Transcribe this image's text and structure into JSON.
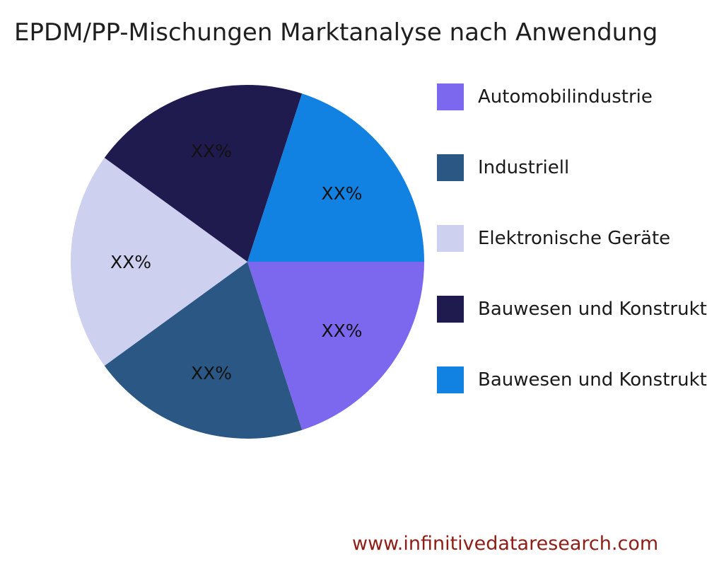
{
  "title": "EPDM/PP-Mischungen Marktanalyse nach Anwendung",
  "watermark": "www.infinitivedataresearch.com",
  "chart_data": {
    "type": "pie",
    "title": "EPDM/PP-Mischungen Marktanalyse nach Anwendung",
    "value_label_text": "XX%",
    "values_unit": "percent",
    "start_angle_deg_clockwise_from_top": 90,
    "legend_position": "right",
    "slices": [
      {
        "label": "Automobilindustrie",
        "value": 20,
        "display_value": "XX%",
        "color": "#7b68ee"
      },
      {
        "label": "Industriell",
        "value": 20,
        "display_value": "XX%",
        "color": "#2a5783"
      },
      {
        "label": "Elektronische Geräte",
        "value": 20,
        "display_value": "XX%",
        "color": "#cdd0ee"
      },
      {
        "label": "Bauwesen und Konstruktion",
        "value": 20,
        "display_value": "XX%",
        "color": "#1f1b4e"
      },
      {
        "label": "Bauwesen und Konstruktion",
        "value": 20,
        "display_value": "XX%",
        "color": "#1282e2"
      }
    ]
  }
}
